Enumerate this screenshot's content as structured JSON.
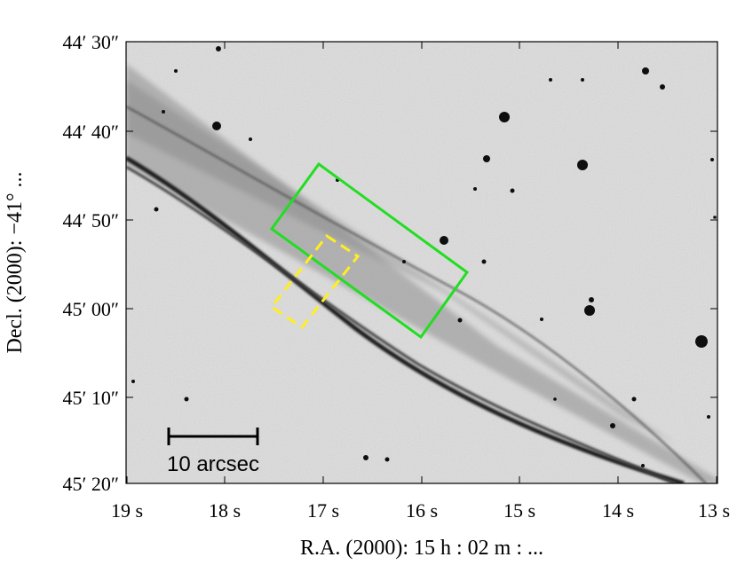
{
  "figure": {
    "y_axis_title": "Decl. (2000): −41° ...",
    "x_axis_title": "R.A. (2000): 15 h : 02 m : ...",
    "y_ticks": [
      "44′ 30″",
      "44′ 40″",
      "44′ 50″",
      "45′ 00″",
      "45′ 10″",
      "45′ 20″"
    ],
    "x_ticks": [
      "19 s",
      "18 s",
      "17 s",
      "16 s",
      "15 s",
      "14 s",
      "13 s"
    ],
    "scale_bar_label": "10 arcsec",
    "colors": {
      "green_box": "#22dd22",
      "yellow_box": "#ffee22",
      "sky_background": "#c9c9c9",
      "filament": "#2a2a2a"
    }
  }
}
